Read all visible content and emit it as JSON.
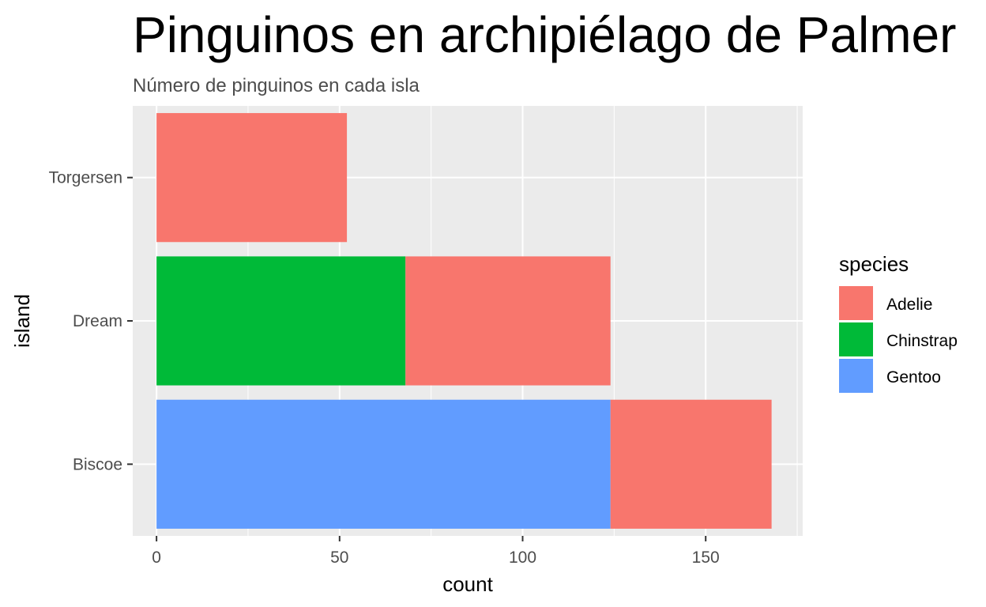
{
  "chart_data": {
    "type": "bar",
    "orientation": "horizontal",
    "stacked": true,
    "title": "Pinguinos en archipiélago de Palmer",
    "subtitle": "Número de pinguinos en cada isla",
    "xlabel": "count",
    "ylabel": "island",
    "categories": [
      "Biscoe",
      "Dream",
      "Torgersen"
    ],
    "series": [
      {
        "name": "Adelie",
        "color": "#F8766D",
        "values": [
          44,
          56,
          52
        ]
      },
      {
        "name": "Chinstrap",
        "color": "#00BA38",
        "values": [
          0,
          68,
          0
        ]
      },
      {
        "name": "Gentoo",
        "color": "#619CFF",
        "values": [
          124,
          0,
          0
        ]
      }
    ],
    "stack_order_from_zero": [
      "Gentoo",
      "Chinstrap",
      "Adelie"
    ],
    "xlim": [
      -6.5,
      176.5
    ],
    "xticks": [
      0,
      50,
      100,
      150
    ],
    "grid": true,
    "legend": {
      "title": "species",
      "position": "right",
      "entries": [
        "Adelie",
        "Chinstrap",
        "Gentoo"
      ]
    },
    "panel_background": "#EBEBEB"
  }
}
